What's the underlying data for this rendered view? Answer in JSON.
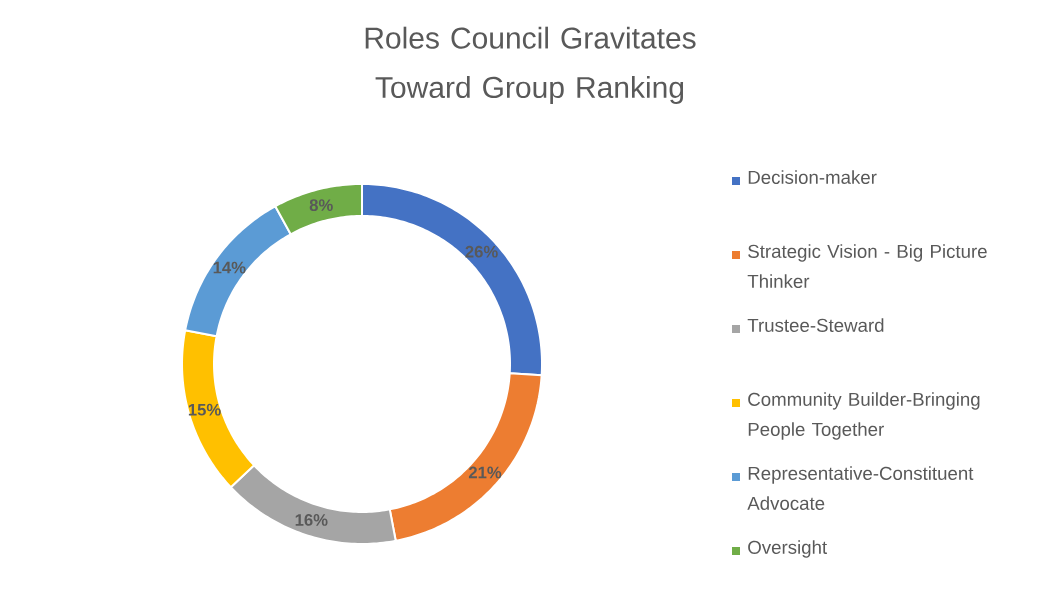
{
  "chart_data": {
    "type": "donut",
    "title": "Roles Council Gravitates Toward Group Ranking",
    "categories": [
      "Decision-maker",
      "Strategic Vision - Big Picture Thinker",
      "Trustee-Steward",
      "Community Builder-Bringing People Together",
      "Representative-Constituent Advocate",
      "Oversight"
    ],
    "values": [
      26,
      21,
      16,
      15,
      14,
      8
    ],
    "colors": [
      "#4472c4",
      "#ed7d31",
      "#a5a5a5",
      "#ffc000",
      "#5b9bd5",
      "#70ad47"
    ],
    "value_labels": [
      "26%",
      "21%",
      "16%",
      "15%",
      "14%",
      "8%"
    ],
    "legend": "right"
  }
}
